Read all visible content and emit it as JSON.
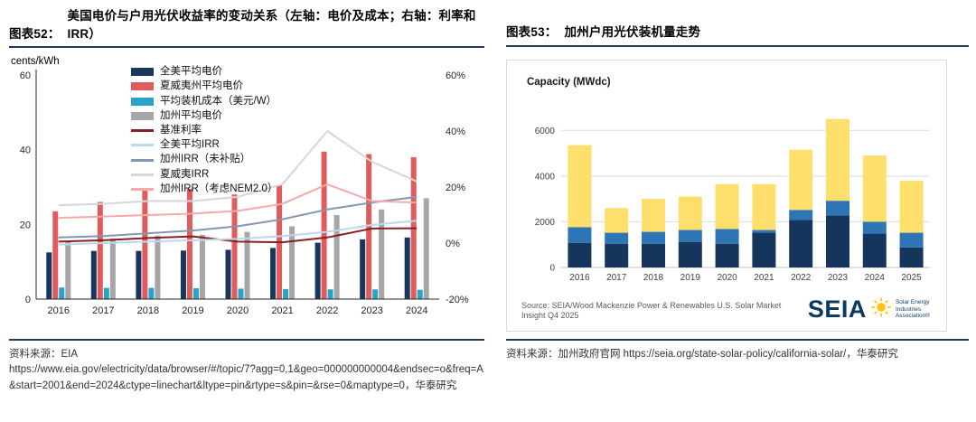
{
  "figures": {
    "left": {
      "label": "图表52：",
      "title": "美国电价与户用光伏收益率的变动关系（左轴：电价及成本；右轴：利率和IRR）",
      "axis_unit": "cents/kWh",
      "source_label": "资料来源：",
      "source_name": "EIA",
      "source_url": "https://www.eia.gov/electricity/data/browser/#/topic/7?agg=0,1&geo=000000000004&endsec=o&freq=A&start=2001&end=2024&ctype=linechart&ltype=pin&rtype=s&pin=&rse=0&maptype=0，华泰研究"
    },
    "right": {
      "label": "图表53：",
      "title": "加州户用光伏装机量走势",
      "axis_label": "Capacity (MWdc)",
      "inner_source": "Source: SEIA/Wood Mackenzie Power & Renewables U.S. Solar Market Insight Q4 2025",
      "logo": {
        "name": "SEIA",
        "tagline": [
          "Solar Energy",
          "Industries",
          "Association®"
        ]
      },
      "source_label": "资料来源：",
      "source_text": "加州政府官网  https://seia.org/state-solar-policy/california-solar/，华泰研究"
    }
  },
  "chart_data": [
    {
      "type": "bar",
      "title": "美国电价与户用光伏收益率的变动关系",
      "categories": [
        "2016",
        "2017",
        "2018",
        "2019",
        "2020",
        "2021",
        "2022",
        "2023",
        "2024"
      ],
      "left_axis": {
        "label": "cents/kWh",
        "min": 0,
        "max": 60,
        "ticks": [
          0,
          20,
          40,
          60
        ]
      },
      "right_axis": {
        "label": "%",
        "min": -20,
        "max": 60,
        "ticks": [
          -20,
          0,
          20,
          40,
          60
        ]
      },
      "grid": false,
      "legend_position": "top-left-vertical",
      "bar_series": [
        {
          "name": "全美平均电价",
          "color": "#17375e",
          "axis": "left",
          "values": [
            12.5,
            12.9,
            12.9,
            13.0,
            13.2,
            13.7,
            15.1,
            16.0,
            16.5
          ]
        },
        {
          "name": "夏威夷州平均电价",
          "color": "#e05c5c",
          "axis": "left",
          "values": [
            23.5,
            26.0,
            29.0,
            29.5,
            28.0,
            30.5,
            39.5,
            38.8,
            38.0
          ]
        },
        {
          "name": "平均装机成本（美元/W）",
          "color": "#2aa3c9",
          "axis": "left",
          "values": [
            3.1,
            3.0,
            3.0,
            2.9,
            2.8,
            2.7,
            2.6,
            2.6,
            2.5
          ]
        },
        {
          "name": "加州平均电价",
          "color": "#a6a6a6",
          "axis": "left",
          "values": [
            15.5,
            16.2,
            17.0,
            17.2,
            18.0,
            19.5,
            22.5,
            24.0,
            27.0
          ]
        }
      ],
      "line_series": [
        {
          "name": "基准利率",
          "color": "#8b1f1f",
          "axis": "right",
          "values": [
            0.5,
            1.0,
            1.8,
            2.4,
            0.5,
            0.3,
            2.0,
            5.2,
            5.3
          ]
        },
        {
          "name": "全美平均IRR",
          "color": "#bdd7ee",
          "axis": "right",
          "values": [
            -0.5,
            0.0,
            0.5,
            1.0,
            1.5,
            2.5,
            4.0,
            6.5,
            8.0
          ]
        },
        {
          "name": "加州IRR（未补贴）",
          "color": "#8496b0",
          "axis": "right",
          "values": [
            2.0,
            2.5,
            3.5,
            4.5,
            6.0,
            8.5,
            12.0,
            14.5,
            16.5
          ]
        },
        {
          "name": "夏威夷IRR",
          "color": "#d6d6d6",
          "axis": "right",
          "values": [
            13.5,
            14.0,
            15.0,
            15.0,
            16.5,
            21.0,
            40.0,
            29.0,
            22.0
          ]
        },
        {
          "name": "加州IRR（考虑NEM2.0）",
          "color": "#f5a9a9",
          "axis": "right",
          "values": [
            9.0,
            9.5,
            10.0,
            10.5,
            11.5,
            14.0,
            21.0,
            15.0,
            14.5
          ]
        }
      ]
    },
    {
      "type": "bar",
      "subtype": "stacked",
      "title": "加州户用光伏装机量走势",
      "ylabel": "Capacity (MWdc)",
      "categories": [
        "2016",
        "2017",
        "2018",
        "2019",
        "2020",
        "2021",
        "2022",
        "2023",
        "2024",
        "2025"
      ],
      "yticks": [
        0,
        2000,
        4000,
        6000
      ],
      "ylim": [
        0,
        7000
      ],
      "grid": true,
      "series": [
        {
          "name": "segment-navy",
          "color": "#15355c",
          "values": [
            1080,
            1040,
            1040,
            1120,
            1040,
            1520,
            2080,
            2280,
            1480,
            880
          ]
        },
        {
          "name": "segment-blue",
          "color": "#2e75b6",
          "values": [
            680,
            480,
            520,
            520,
            640,
            120,
            440,
            640,
            520,
            640
          ]
        },
        {
          "name": "segment-yellow",
          "color": "#ffdf6b",
          "values": [
            3590,
            1080,
            1440,
            1460,
            1970,
            2010,
            2630,
            3580,
            2900,
            2280
          ]
        }
      ]
    }
  ]
}
